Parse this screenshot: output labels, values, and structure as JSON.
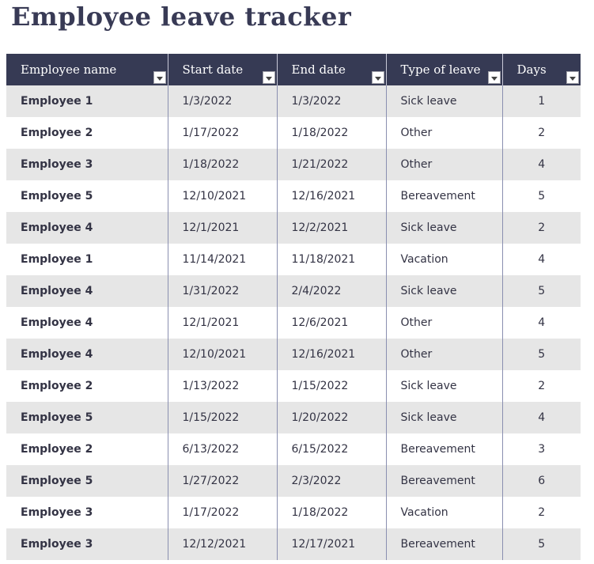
{
  "title": "Employee leave tracker",
  "columns": [
    "Employee name",
    "Start date",
    "End date",
    "Type of leave",
    "Days"
  ],
  "rows": [
    [
      "Employee 1",
      "1/3/2022",
      "1/3/2022",
      "Sick leave",
      "1"
    ],
    [
      "Employee 2",
      "1/17/2022",
      "1/18/2022",
      "Other",
      "2"
    ],
    [
      "Employee 3",
      "1/18/2022",
      "1/21/2022",
      "Other",
      "4"
    ],
    [
      "Employee 5",
      "12/10/2021",
      "12/16/2021",
      "Bereavement",
      "5"
    ],
    [
      "Employee 4",
      "12/1/2021",
      "12/2/2021",
      "Sick leave",
      "2"
    ],
    [
      "Employee 1",
      "11/14/2021",
      "11/18/2021",
      "Vacation",
      "4"
    ],
    [
      "Employee 4",
      "1/31/2022",
      "2/4/2022",
      "Sick leave",
      "5"
    ],
    [
      "Employee 4",
      "12/1/2021",
      "12/6/2021",
      "Other",
      "4"
    ],
    [
      "Employee 4",
      "12/10/2021",
      "12/16/2021",
      "Other",
      "5"
    ],
    [
      "Employee 2",
      "1/13/2022",
      "1/15/2022",
      "Sick leave",
      "2"
    ],
    [
      "Employee 5",
      "1/15/2022",
      "1/20/2022",
      "Sick leave",
      "4"
    ],
    [
      "Employee 2",
      "6/13/2022",
      "6/15/2022",
      "Bereavement",
      "3"
    ],
    [
      "Employee 5",
      "1/27/2022",
      "2/3/2022",
      "Bereavement",
      "6"
    ],
    [
      "Employee 3",
      "1/17/2022",
      "1/18/2022",
      "Vacation",
      "2"
    ],
    [
      "Employee 3",
      "12/12/2021",
      "12/17/2021",
      "Bereavement",
      "5"
    ]
  ],
  "colors": {
    "header_bg": "#363a54",
    "title": "#383a55",
    "band": "#e6e6e6"
  }
}
